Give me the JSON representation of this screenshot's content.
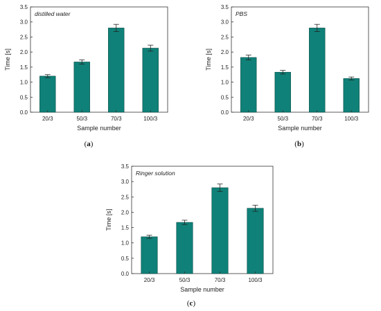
{
  "colors": {
    "bar": "#0f8178",
    "bar_edge": "#0a4d47",
    "axis": "#333333",
    "error": "#222222"
  },
  "chart_data": [
    {
      "type": "bar",
      "annotation": "distilled water",
      "caption": "a",
      "xlabel": "Sample number",
      "ylabel": "Time [s]",
      "ylim": [
        0,
        3.5
      ],
      "yticks": [
        "0.0",
        "0.5",
        "1.0",
        "1.5",
        "2.0",
        "2.5",
        "3.0",
        "3.5"
      ],
      "categories": [
        "20/3",
        "50/3",
        "70/3",
        "100/3"
      ],
      "values": [
        1.2,
        1.67,
        2.8,
        2.13
      ],
      "errors": [
        0.05,
        0.07,
        0.12,
        0.1
      ]
    },
    {
      "type": "bar",
      "annotation": "PBS",
      "caption": "b",
      "xlabel": "Sample number",
      "ylabel": "Time [s]",
      "ylim": [
        0,
        3.5
      ],
      "yticks": [
        "0.0",
        "0.5",
        "1.0",
        "1.5",
        "2.0",
        "2.5",
        "3.0",
        "3.5"
      ],
      "categories": [
        "20/3",
        "50/3",
        "70/3",
        "100/3"
      ],
      "values": [
        1.82,
        1.33,
        2.8,
        1.12
      ],
      "errors": [
        0.08,
        0.06,
        0.12,
        0.05
      ]
    },
    {
      "type": "bar",
      "annotation": "Ringer solution",
      "caption": "c",
      "xlabel": "Sample number",
      "ylabel": "Time [s]",
      "ylim": [
        0,
        3.5
      ],
      "yticks": [
        "0.0",
        "0.5",
        "1.0",
        "1.5",
        "2.0",
        "2.5",
        "3.0",
        "3.5"
      ],
      "categories": [
        "20/3",
        "50/3",
        "70/3",
        "100/3"
      ],
      "values": [
        1.2,
        1.67,
        2.8,
        2.13
      ],
      "errors": [
        0.05,
        0.07,
        0.12,
        0.1
      ]
    }
  ]
}
